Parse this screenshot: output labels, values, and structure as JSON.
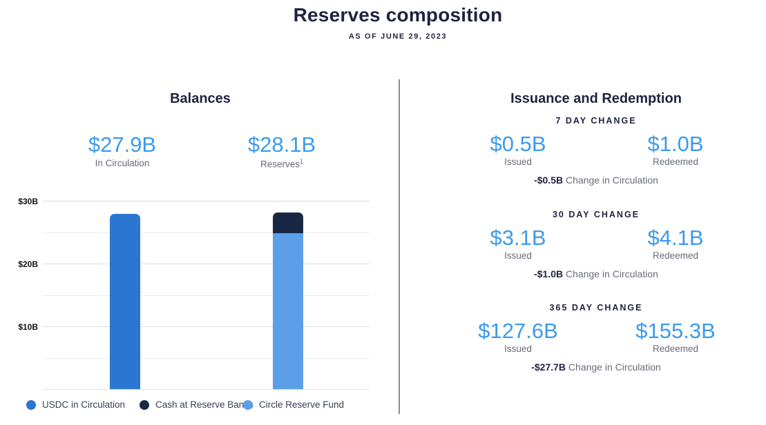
{
  "header": {
    "title": "Reserves composition",
    "subtitle": "AS OF JUNE 29, 2023"
  },
  "colors": {
    "accent_blue": "#3C9AEC",
    "navy_text": "#1F2240",
    "bar_usdc_blue": "#2B76D0",
    "bar_cash_navy": "#1A2744",
    "bar_reserve_fund_blue": "#5C9FE9"
  },
  "balances": {
    "heading": "Balances",
    "stat_circulation": {
      "value": "$27.9B",
      "label": "In Circulation"
    },
    "stat_reserves": {
      "value": "$28.1B",
      "label": "Reserves",
      "superscript": "1"
    },
    "legend": [
      {
        "label": "USDC in Circulation",
        "color": "#2B76D0"
      },
      {
        "label": "Cash at Reserve Banks",
        "color": "#1A2744"
      },
      {
        "label": "Circle Reserve Fund",
        "color": "#5C9FE9"
      }
    ]
  },
  "chart_data": {
    "type": "bar",
    "stacked": true,
    "categories": [
      "In Circulation",
      "Reserves"
    ],
    "series": [
      {
        "name": "USDC in Circulation",
        "color": "#2B76D0",
        "values": [
          27.9,
          0
        ]
      },
      {
        "name": "Circle Reserve Fund",
        "color": "#5C9FE9",
        "values": [
          0,
          24.9
        ]
      },
      {
        "name": "Cash at Reserve Banks",
        "color": "#1A2744",
        "values": [
          0,
          3.2
        ]
      }
    ],
    "title": "Balances",
    "xlabel": "",
    "ylabel": "",
    "ylim": [
      0,
      31
    ],
    "yticks": [
      "$30B",
      "$20B",
      "$10B"
    ],
    "ytick_values": [
      30,
      20,
      10
    ],
    "gridlines_major": [
      10,
      20,
      30
    ],
    "gridlines_minor": [
      5,
      15,
      25
    ],
    "legend_position": "bottom",
    "bar_totals": {
      "In Circulation": 27.9,
      "Reserves": 28.1
    }
  },
  "issuance": {
    "heading": "Issuance and Redemption",
    "sections": [
      {
        "period": "7 DAY CHANGE",
        "issued": "$0.5B",
        "issued_label": "Issued",
        "redeemed": "$1.0B",
        "redeemed_label": "Redeemed",
        "change": "-$0.5B",
        "change_label": "Change in Circulation"
      },
      {
        "period": "30 DAY CHANGE",
        "issued": "$3.1B",
        "issued_label": "Issued",
        "redeemed": "$4.1B",
        "redeemed_label": "Redeemed",
        "change": "-$1.0B",
        "change_label": "Change in Circulation"
      },
      {
        "period": "365 DAY CHANGE",
        "issued": "$127.6B",
        "issued_label": "Issued",
        "redeemed": "$155.3B",
        "redeemed_label": "Redeemed",
        "change": "-$27.7B",
        "change_label": "Change in Circulation"
      }
    ]
  }
}
